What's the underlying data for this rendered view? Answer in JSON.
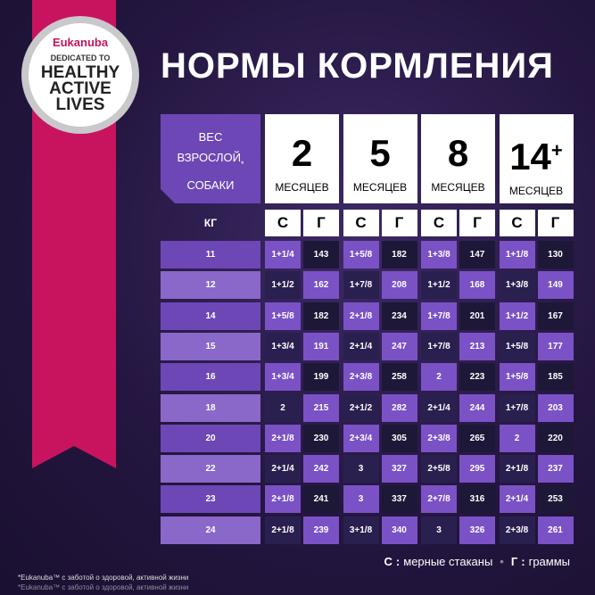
{
  "logo": {
    "brand": "Eukanuba",
    "tagline": "DEDICATED TO",
    "lines": [
      "HEALTHY",
      "ACTIVE",
      "LIVES"
    ]
  },
  "title": "НОРМЫ КОРМЛЕНИЯ",
  "table": {
    "corner": [
      "ВЕС",
      "ВЗРОСЛОЙ",
      "СОБАКИ"
    ],
    "corner_mark": "*",
    "ages": [
      {
        "age": "2",
        "unit": "МЕСЯЦЕВ"
      },
      {
        "age": "5",
        "unit": "МЕСЯЦЕВ"
      },
      {
        "age": "8",
        "unit": "МЕСЯЦЕВ"
      },
      {
        "age": "14",
        "sup": "+",
        "unit": "МЕСЯЦЕВ"
      }
    ],
    "weight_unit": "КГ",
    "sub_headers": [
      "С",
      "Г"
    ],
    "rows": [
      [
        11,
        "1+1/4",
        143,
        "1+5/8",
        182,
        "1+3/8",
        147,
        "1+1/8",
        130
      ],
      [
        12,
        "1+1/2",
        162,
        "1+7/8",
        208,
        "1+1/2",
        168,
        "1+3/8",
        149
      ],
      [
        14,
        "1+5/8",
        182,
        "2+1/8",
        234,
        "1+7/8",
        201,
        "1+1/2",
        167
      ],
      [
        15,
        "1+3/4",
        191,
        "2+1/4",
        247,
        "1+7/8",
        213,
        "1+5/8",
        177
      ],
      [
        16,
        "1+3/4",
        199,
        "2+3/8",
        258,
        "2",
        223,
        "1+5/8",
        185
      ],
      [
        18,
        "2",
        215,
        "2+1/2",
        282,
        "2+1/4",
        244,
        "1+7/8",
        203
      ],
      [
        20,
        "2+1/8",
        230,
        "2+3/4",
        305,
        "2+3/8",
        265,
        "2",
        220
      ],
      [
        22,
        "2+1/4",
        242,
        "3",
        327,
        "2+5/8",
        295,
        "2+1/8",
        237
      ],
      [
        23,
        "2+1/8",
        241,
        "3",
        337,
        "2+7/8",
        316,
        "2+1/4",
        253
      ],
      [
        24,
        "2+1/8",
        239,
        "3+1/8",
        340,
        "3",
        326,
        "2+3/8",
        261
      ]
    ]
  },
  "legend": {
    "separator": ":",
    "items": [
      {
        "key": "С",
        "text": "мерные стаканы"
      },
      {
        "key": "Г",
        "text": "граммы"
      }
    ]
  },
  "footnotes": [
    "*Eukanuba™ с заботой о здоровой, активной жизни",
    "*Eukanuba™ с заботой о здоровой, активной жизни"
  ]
}
